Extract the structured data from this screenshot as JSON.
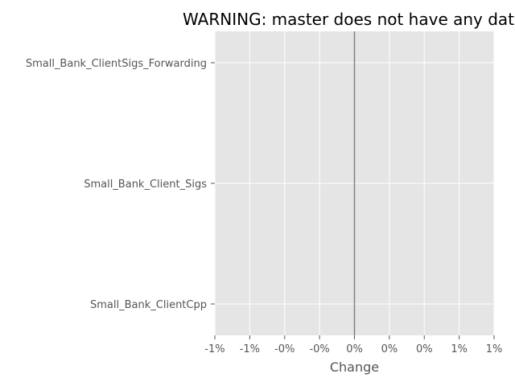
{
  "chart_data": {
    "type": "bar",
    "title": "WARNING: master does not have any data",
    "xlabel": "Change",
    "ylabel": "",
    "categories": [
      "Small_Bank_ClientSigs_Forwarding",
      "Small_Bank_Client_Sigs",
      "Small_Bank_ClientCpp"
    ],
    "values": [
      0,
      0,
      0
    ],
    "xlim": [
      -0.01,
      0.01
    ],
    "xticks": [
      -0.01,
      -0.0075,
      -0.005,
      -0.0025,
      0,
      0.0025,
      0.005,
      0.0075,
      0.01
    ],
    "xtick_labels": [
      "-1%",
      "-1%",
      "-0%",
      "-0%",
      "0%",
      "0%",
      "0%",
      "1%",
      "1%"
    ],
    "zero_line": 0,
    "grid": true,
    "colors": {
      "background": "#e5e5e5",
      "grid": "#ffffff",
      "zero_line": "#808080",
      "tick_text": "#555555",
      "title_text": "#000000"
    }
  }
}
